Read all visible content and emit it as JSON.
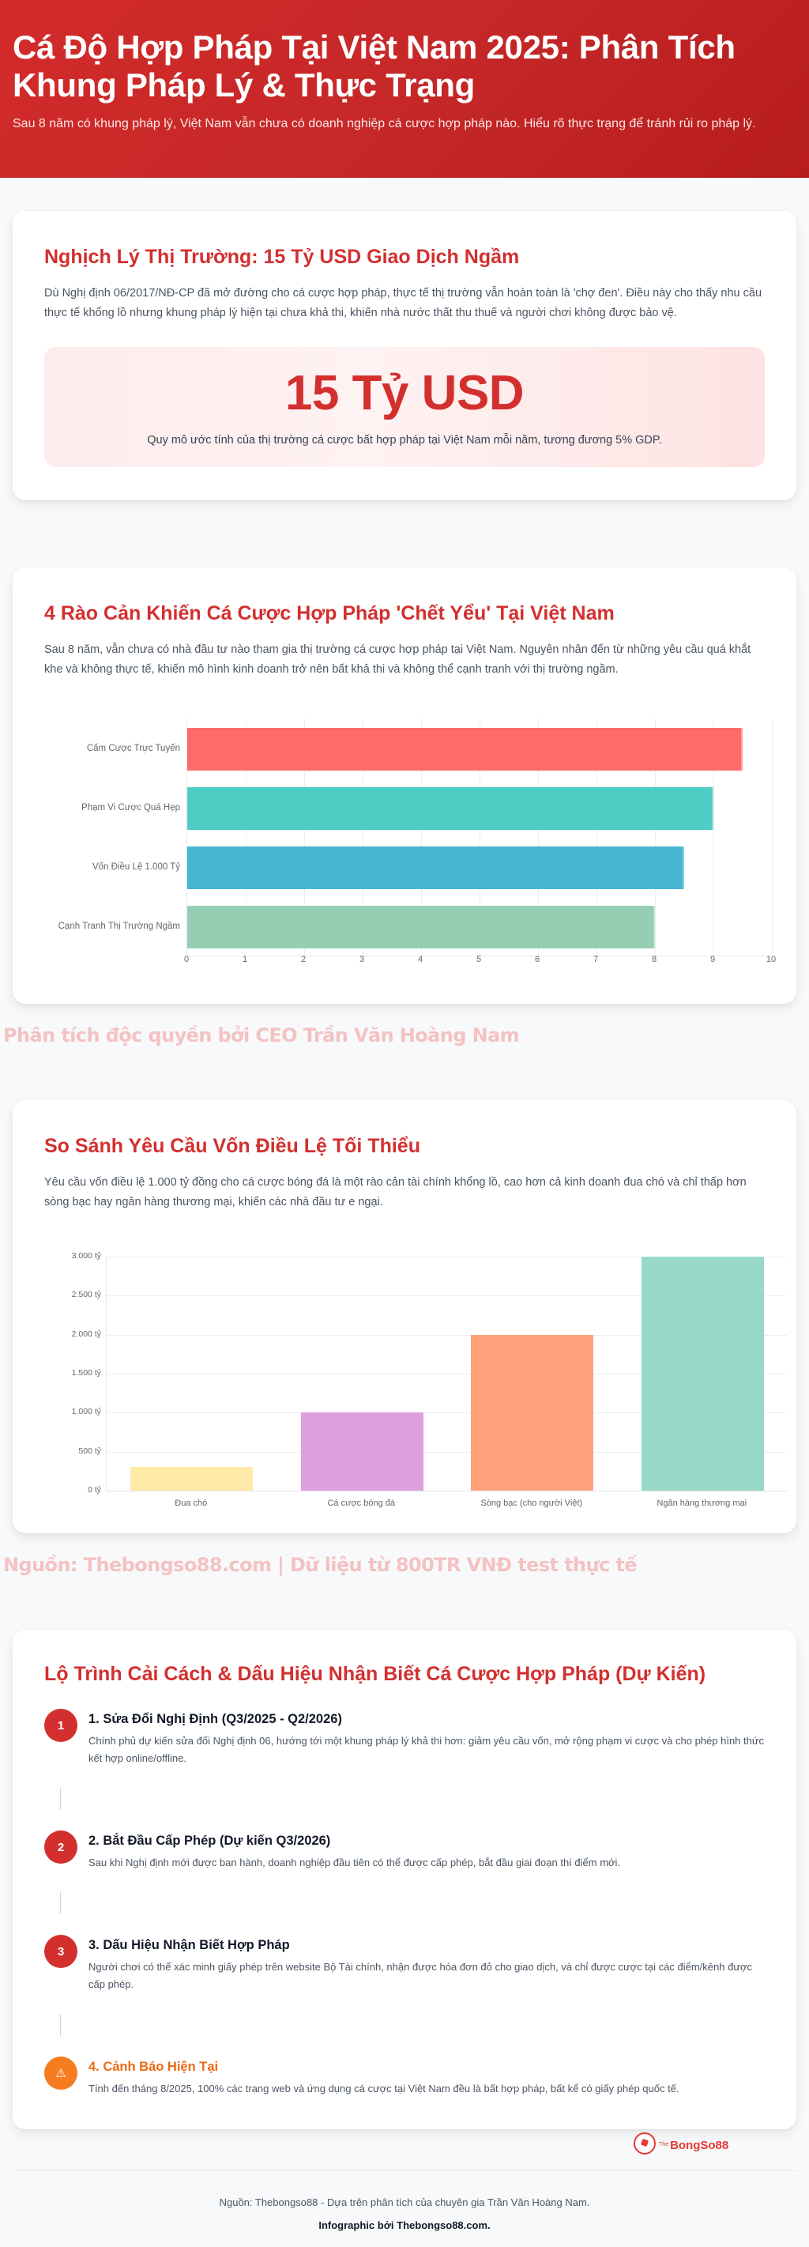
{
  "header": {
    "title": "Cá Độ Hợp Pháp Tại Việt Nam 2025: Phân Tích Khung Pháp Lý & Thực Trạng",
    "subtitle": "Sau 8 năm có khung pháp lý, Việt Nam vẫn chưa có doanh nghiệp cá cược hợp pháp nào. Hiểu rõ thực trạng để tránh rủi ro pháp lý."
  },
  "market": {
    "title": "Nghịch Lý Thị Trường: 15 Tỷ USD Giao Dịch Ngầm",
    "lead": "Dù Nghị định 06/2017/NĐ-CP đã mở đường cho cá cược hợp pháp, thực tế thị trường vẫn hoàn toàn là 'chợ đen'. Điều này cho thấy nhu cầu thực tế khổng lồ nhưng khung pháp lý hiện tại chưa khả thi, khiến nhà nước thất thu thuế và người chơi không được bảo vệ.",
    "stat_value": "15 Tỷ USD",
    "stat_caption": "Quy mô ước tính của thị trường cá cược bất hợp pháp tại Việt Nam mỗi năm, tương đương 5% GDP."
  },
  "barriers": {
    "title": "4 Rào Cản Khiến Cá Cược Hợp Pháp 'Chết Yểu' Tại Việt Nam",
    "lead": "Sau 8 năm, vẫn chưa có nhà đầu tư nào tham gia thị trường cá cược hợp pháp tại Việt Nam. Nguyên nhân đến từ những yêu cầu quá khắt khe và không thực tế, khiến mô hình kinh doanh trở nên bất khả thi và không thể cạnh tranh với thị trường ngầm."
  },
  "watermark_1": "Phân tích độc quyền bởi CEO Trần Văn Hoàng Nam",
  "capital": {
    "title": "So Sánh Yêu Cầu Vốn Điều Lệ Tối Thiểu",
    "lead": "Yêu cầu vốn điều lệ 1.000 tỷ đồng cho cá cược bóng đá là một rào cản tài chính khổng lồ, cao hơn cả kinh doanh đua chó và chỉ thấp hơn sòng bạc hay ngân hàng thương mại, khiến các nhà đầu tư e ngại."
  },
  "watermark_2": "Nguồn: Thebongso88.com | Dữ liệu từ 800TR VNĐ test thực tế",
  "roadmap": {
    "title": "Lộ Trình Cải Cách & Dấu Hiệu Nhận Biết Cá Cược Hợp Pháp (Dự Kiến)",
    "steps": [
      {
        "badge": "1",
        "title": "1. Sửa Đổi Nghị Định (Q3/2025 - Q2/2026)",
        "text": "Chính phủ dự kiến sửa đổi Nghị định 06, hướng tới một khung pháp lý khả thi hơn: giảm yêu cầu vốn, mở rộng phạm vi cược và cho phép hình thức kết hợp online/offline."
      },
      {
        "badge": "2",
        "title": "2. Bắt Đầu Cấp Phép (Dự kiến Q3/2026)",
        "text": "Sau khi Nghị định mới được ban hành, doanh nghiệp đầu tiên có thể được cấp phép, bắt đầu giai đoạn thí điểm mới."
      },
      {
        "badge": "3",
        "title": "3. Dấu Hiệu Nhận Biết Hợp Pháp",
        "text": "Người chơi có thể xác minh giấy phép trên website Bộ Tài chính, nhận được hóa đơn đỏ cho giao dịch, và chỉ được cược tại các điểm/kênh được cấp phép."
      },
      {
        "badge": "⚠",
        "title": "4. Cảnh Báo Hiện Tại",
        "text": "Tính đến tháng 8/2025, 100% các trang web và ứng dụng cá cược tại Việt Nam đều là bất hợp pháp, bất kể có giấy phép quốc tế."
      }
    ]
  },
  "logo": {
    "prefix": "The",
    "name": "BongSo88"
  },
  "footer": {
    "source": "Nguồn: Thebongso88 - Dựa trên phân tích của chuyên gia Trần Văn Hoàng Nam.",
    "credit": "Infographic bởi Thebongso88.com."
  },
  "colors": {
    "brand_red": "#d32f2f",
    "warning_orange": "#f57c1f",
    "watermark": "#f4c2c2"
  },
  "chart_data": [
    {
      "type": "bar",
      "orientation": "horizontal",
      "title": "",
      "categories": [
        "Cấm Cược Trực Tuyến",
        "Phạm Vi Cược Quá Hẹp",
        "Vốn Điều Lệ 1.000 Tỷ",
        "Cạnh Tranh Thị Trường Ngầm"
      ],
      "values": [
        9.5,
        9,
        8.5,
        8
      ],
      "colors": [
        "#ff6b6b",
        "#4ecdc4",
        "#45b7d1",
        "#96ceb4"
      ],
      "xlabel": "",
      "ylabel": "",
      "xlim": [
        0,
        10
      ],
      "xticks": [
        "0",
        "1",
        "2",
        "3",
        "4",
        "5",
        "6",
        "7",
        "8",
        "9",
        "10"
      ],
      "grid": true,
      "legend": "none"
    },
    {
      "type": "bar",
      "orientation": "vertical",
      "title": "",
      "categories": [
        "Đua chó",
        "Cá cược bóng đá",
        "Sòng bạc (cho người Việt)",
        "Ngân hàng thương mại"
      ],
      "values": [
        300,
        1000,
        2000,
        3000
      ],
      "colors": [
        "#ffeaa7",
        "#dda0dd",
        "#ffa07a",
        "#98d8c8"
      ],
      "xlabel": "",
      "ylabel": "",
      "ylim": [
        0,
        3000
      ],
      "yticks": [
        "0 tỷ",
        "500 tỷ",
        "1.000 tỷ",
        "1.500 tỷ",
        "2.000 tỷ",
        "2.500 tỷ",
        "3.000 tỷ"
      ],
      "grid": true,
      "legend": "none"
    }
  ]
}
